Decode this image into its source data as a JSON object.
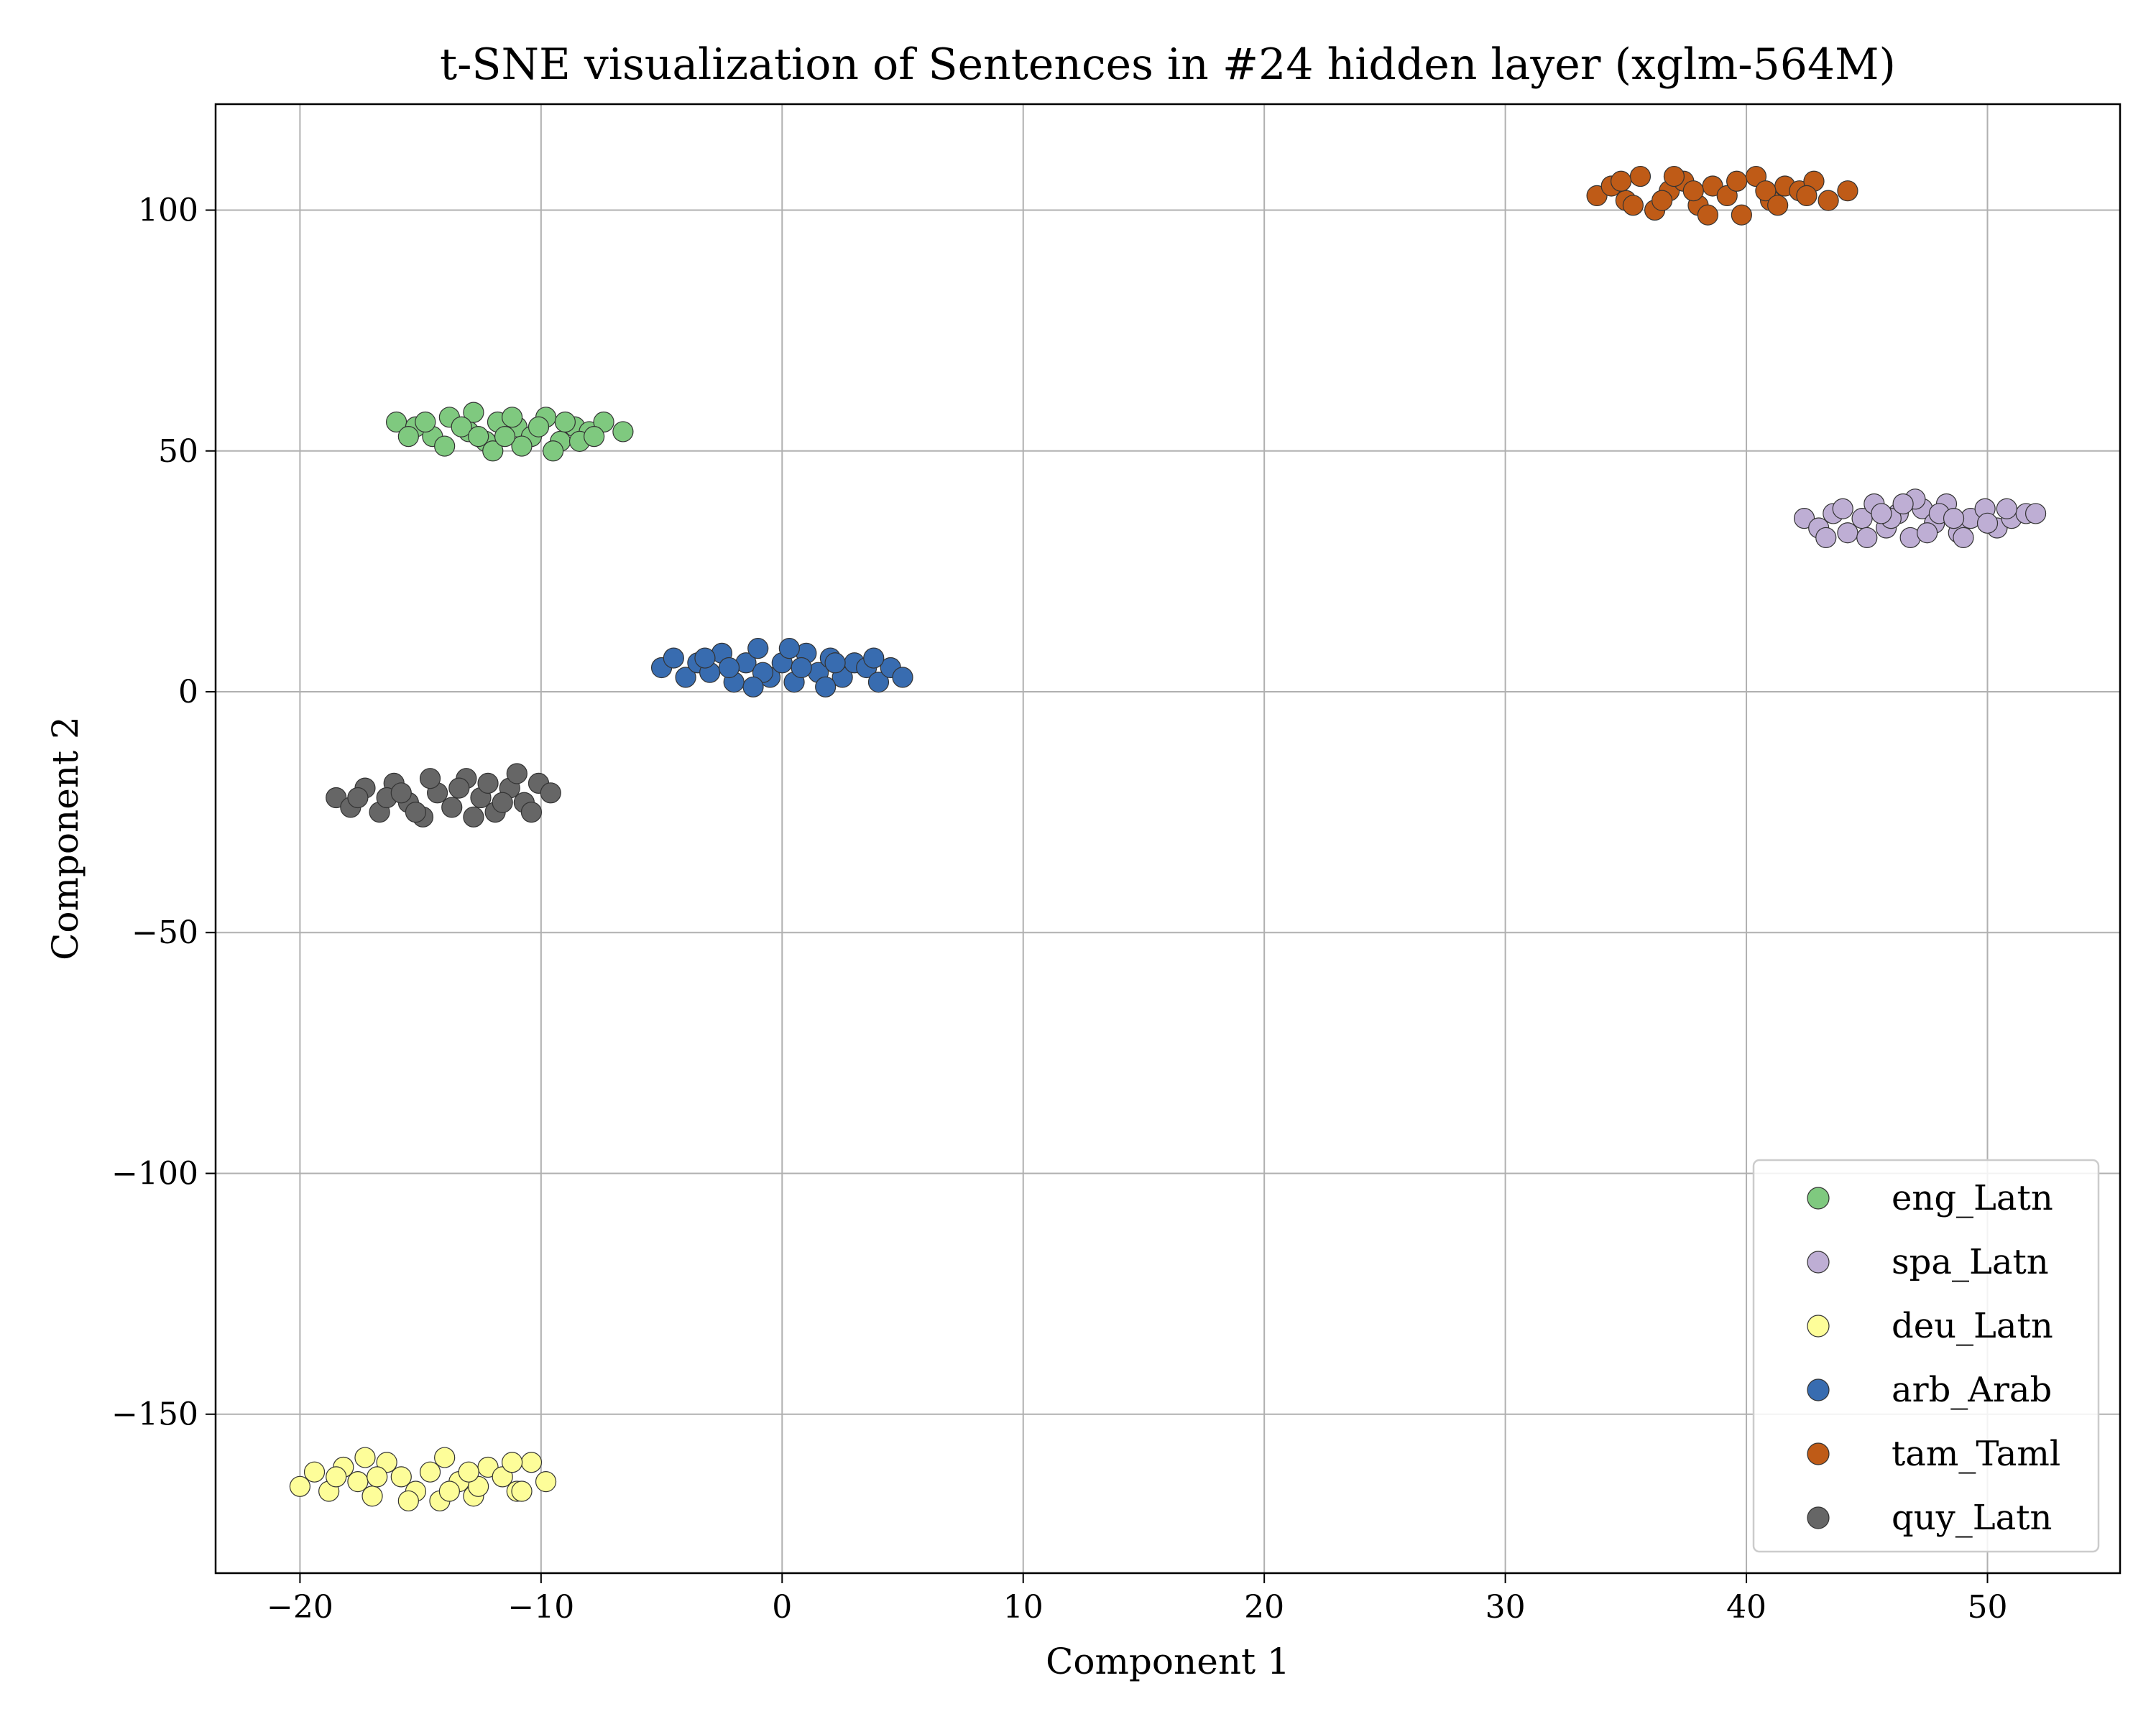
{
  "chart_data": {
    "type": "scatter",
    "title": "t-SNE visualization of Sentences in #24 hidden layer (xglm-564M)",
    "xlabel": "Component 1",
    "ylabel": "Component 2",
    "xlim": [
      -23.5,
      55.5
    ],
    "ylim": [
      -183,
      122
    ],
    "xticks": [
      -20,
      -10,
      0,
      10,
      20,
      30,
      40,
      50
    ],
    "yticks": [
      -150,
      -100,
      -50,
      0,
      50,
      100
    ],
    "xtick_labels": [
      "−20",
      "−10",
      "0",
      "10",
      "20",
      "30",
      "40",
      "50"
    ],
    "ytick_labels": [
      "−150",
      "−100",
      "−50",
      "0",
      "50",
      "100"
    ],
    "grid": true,
    "legend_position": "lower-right",
    "series": [
      {
        "name": "eng_Latn",
        "color": "#7fc97f",
        "points": [
          [
            -16,
            56
          ],
          [
            -15.2,
            55
          ],
          [
            -14.5,
            53
          ],
          [
            -13.8,
            57
          ],
          [
            -13,
            54
          ],
          [
            -12.3,
            52
          ],
          [
            -11.8,
            56
          ],
          [
            -11,
            55
          ],
          [
            -10.4,
            53
          ],
          [
            -9.8,
            57
          ],
          [
            -9.2,
            52
          ],
          [
            -8.6,
            55
          ],
          [
            -8,
            54
          ],
          [
            -7.4,
            56
          ],
          [
            -6.6,
            54
          ],
          [
            -15.5,
            53
          ],
          [
            -14,
            51
          ],
          [
            -12.8,
            58
          ],
          [
            -12,
            50
          ],
          [
            -10.8,
            51
          ],
          [
            -9.5,
            50
          ],
          [
            -8.4,
            52
          ],
          [
            -13.3,
            55
          ],
          [
            -11.5,
            53
          ],
          [
            -10.1,
            55
          ],
          [
            -14.8,
            56
          ],
          [
            -12.6,
            53
          ],
          [
            -9,
            56
          ],
          [
            -7.8,
            53
          ],
          [
            -11.2,
            57
          ]
        ]
      },
      {
        "name": "spa_Latn",
        "color": "#beaed4",
        "points": [
          [
            42.4,
            36
          ],
          [
            43,
            34
          ],
          [
            43.6,
            37
          ],
          [
            44.2,
            33
          ],
          [
            44.8,
            36
          ],
          [
            45.3,
            39
          ],
          [
            45.8,
            34
          ],
          [
            46.3,
            37
          ],
          [
            46.8,
            32
          ],
          [
            47.3,
            38
          ],
          [
            47.8,
            35
          ],
          [
            48.3,
            39
          ],
          [
            48.8,
            33
          ],
          [
            49.3,
            36
          ],
          [
            49.9,
            38
          ],
          [
            50.4,
            34
          ],
          [
            51,
            36
          ],
          [
            51.6,
            37
          ],
          [
            52,
            37
          ],
          [
            44,
            38
          ],
          [
            45,
            32
          ],
          [
            46,
            36
          ],
          [
            47,
            40
          ],
          [
            48,
            37
          ],
          [
            49,
            32
          ],
          [
            50,
            35
          ],
          [
            47.5,
            33
          ],
          [
            46.5,
            39
          ],
          [
            43.3,
            32
          ],
          [
            45.6,
            37
          ],
          [
            48.6,
            36
          ],
          [
            50.8,
            38
          ]
        ]
      },
      {
        "name": "deu_Latn",
        "color": "#fdfd99",
        "points": [
          [
            -20,
            -165
          ],
          [
            -19.4,
            -162
          ],
          [
            -18.8,
            -166
          ],
          [
            -18.2,
            -161
          ],
          [
            -17.6,
            -164
          ],
          [
            -17,
            -167
          ],
          [
            -16.4,
            -160
          ],
          [
            -15.8,
            -163
          ],
          [
            -15.2,
            -166
          ],
          [
            -14.6,
            -162
          ],
          [
            -14,
            -159
          ],
          [
            -13.4,
            -164
          ],
          [
            -12.8,
            -167
          ],
          [
            -12.2,
            -161
          ],
          [
            -11.6,
            -163
          ],
          [
            -11,
            -166
          ],
          [
            -10.4,
            -160
          ],
          [
            -9.8,
            -164
          ],
          [
            -16.8,
            -163
          ],
          [
            -14.2,
            -168
          ],
          [
            -12.6,
            -165
          ],
          [
            -11.2,
            -160
          ],
          [
            -15.5,
            -168
          ],
          [
            -13,
            -162
          ],
          [
            -17.3,
            -159
          ],
          [
            -10.8,
            -166
          ],
          [
            -18.5,
            -163
          ],
          [
            -13.8,
            -166
          ]
        ]
      },
      {
        "name": "arb_Arab",
        "color": "#386cb0",
        "points": [
          [
            -5,
            5
          ],
          [
            -4.5,
            7
          ],
          [
            -4,
            3
          ],
          [
            -3.5,
            6
          ],
          [
            -3,
            4
          ],
          [
            -2.5,
            8
          ],
          [
            -2,
            2
          ],
          [
            -1.5,
            6
          ],
          [
            -1,
            9
          ],
          [
            -0.5,
            3
          ],
          [
            0,
            6
          ],
          [
            0.5,
            2
          ],
          [
            1,
            8
          ],
          [
            1.5,
            4
          ],
          [
            2,
            7
          ],
          [
            2.5,
            3
          ],
          [
            3,
            6
          ],
          [
            3.5,
            5
          ],
          [
            4,
            2
          ],
          [
            4.5,
            5
          ],
          [
            5,
            3
          ],
          [
            -2.2,
            5
          ],
          [
            -0.8,
            4
          ],
          [
            0.8,
            5
          ],
          [
            2.2,
            6
          ],
          [
            -1.2,
            1
          ],
          [
            0.3,
            9
          ],
          [
            1.8,
            1
          ],
          [
            -3.2,
            7
          ],
          [
            3.8,
            7
          ]
        ]
      },
      {
        "name": "tam_Taml",
        "color": "#bf5b17",
        "points": [
          [
            33.8,
            103
          ],
          [
            34.4,
            105
          ],
          [
            35,
            102
          ],
          [
            35.6,
            107
          ],
          [
            36.2,
            100
          ],
          [
            36.8,
            104
          ],
          [
            37.4,
            106
          ],
          [
            38,
            101
          ],
          [
            38.6,
            105
          ],
          [
            39.2,
            103
          ],
          [
            39.8,
            99
          ],
          [
            40.4,
            107
          ],
          [
            41,
            102
          ],
          [
            41.6,
            105
          ],
          [
            42.2,
            104
          ],
          [
            42.8,
            106
          ],
          [
            43.4,
            102
          ],
          [
            44.2,
            104
          ],
          [
            35.3,
            101
          ],
          [
            37,
            107
          ],
          [
            38.4,
            99
          ],
          [
            39.6,
            106
          ],
          [
            40.8,
            104
          ],
          [
            36.5,
            102
          ],
          [
            41.3,
            101
          ],
          [
            37.8,
            104
          ],
          [
            34.8,
            106
          ],
          [
            42.5,
            103
          ]
        ]
      },
      {
        "name": "quy_Latn",
        "color": "#666666",
        "points": [
          [
            -18.5,
            -22
          ],
          [
            -17.9,
            -24
          ],
          [
            -17.3,
            -20
          ],
          [
            -16.7,
            -25
          ],
          [
            -16.1,
            -19
          ],
          [
            -15.5,
            -23
          ],
          [
            -14.9,
            -26
          ],
          [
            -14.3,
            -21
          ],
          [
            -13.7,
            -24
          ],
          [
            -13.1,
            -18
          ],
          [
            -12.5,
            -22
          ],
          [
            -11.9,
            -25
          ],
          [
            -11.3,
            -20
          ],
          [
            -10.7,
            -23
          ],
          [
            -10.1,
            -19
          ],
          [
            -9.6,
            -21
          ],
          [
            -16.4,
            -22
          ],
          [
            -14.6,
            -18
          ],
          [
            -12.8,
            -26
          ],
          [
            -11,
            -17
          ],
          [
            -15.2,
            -25
          ],
          [
            -13.4,
            -20
          ],
          [
            -11.6,
            -23
          ],
          [
            -17.6,
            -22
          ],
          [
            -10.4,
            -25
          ],
          [
            -12.2,
            -19
          ],
          [
            -15.8,
            -21
          ]
        ]
      }
    ]
  }
}
